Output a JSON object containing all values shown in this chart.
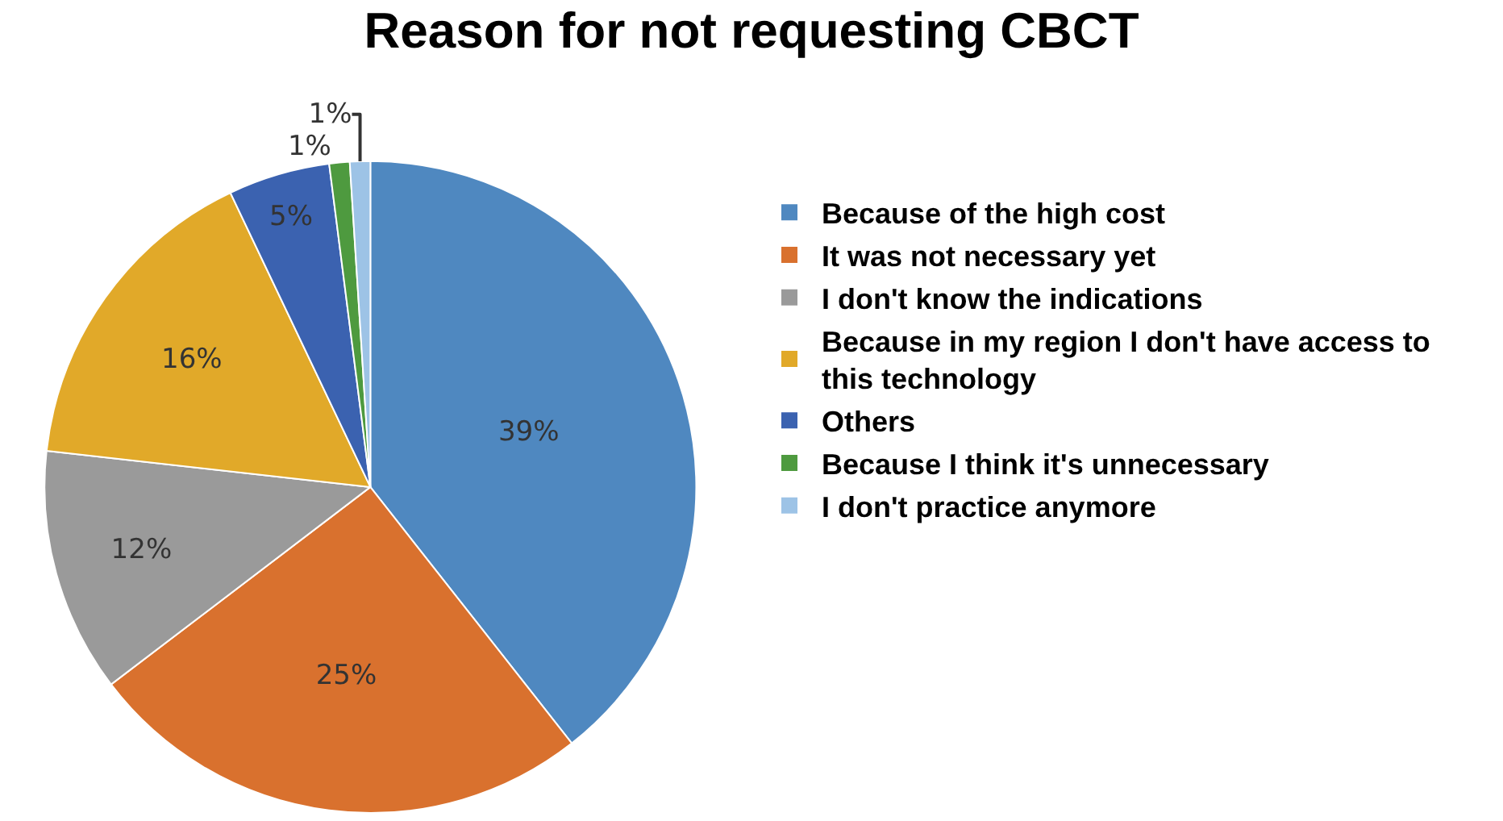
{
  "chart_data": {
    "type": "pie",
    "title": "Reason for not requesting CBCT",
    "categories": [
      "Because of the high cost",
      "It was not necessary yet",
      "I don't know the indications",
      "Because in my region I don't have access to\nthis technology",
      "Others",
      "Because I think it's unnecessary",
      "I don't practice anymore"
    ],
    "values": [
      39,
      25,
      12,
      16,
      5,
      1,
      1
    ],
    "value_labels": [
      "39%",
      "25%",
      "12%",
      "16%",
      "5%",
      "1%",
      "1%"
    ],
    "colors": [
      "#4f88c0",
      "#d9712e",
      "#9a9a9a",
      "#e1a929",
      "#3b62b0",
      "#4e9a3f",
      "#9dc3e6"
    ],
    "legend": "right"
  }
}
